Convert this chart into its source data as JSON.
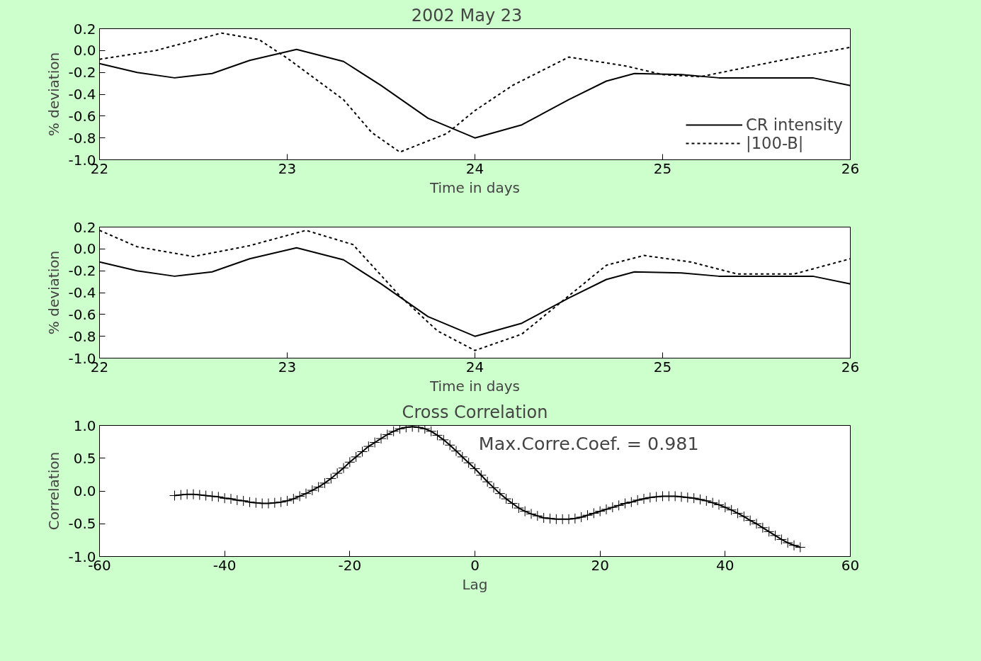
{
  "chart_data": [
    {
      "type": "line",
      "title": "2002 May    23",
      "xlabel": "Time in days",
      "ylabel": "% deviation",
      "xlim": [
        22,
        26
      ],
      "xticks": [
        22,
        23,
        24,
        25,
        26
      ],
      "ylim": [
        -1.0,
        0.2
      ],
      "yticks": [
        {
          "value": 0.2,
          "label": "0.2"
        },
        {
          "value": 0.0,
          "label": "0.0"
        },
        {
          "value": -0.2,
          "label": "-0.2"
        },
        {
          "value": -0.4,
          "label": "-0.4"
        },
        {
          "value": -0.6,
          "label": "-0.6"
        },
        {
          "value": -0.8,
          "label": "-0.8"
        },
        {
          "value": -1.0,
          "label": "-1.0"
        }
      ],
      "grid": false,
      "legend": "bottom right",
      "series": [
        {
          "name": "CR intensity",
          "color": "#000000",
          "line_style": "solid",
          "x": [
            22,
            22.2,
            22.4,
            22.6,
            22.8,
            23.05,
            23.3,
            23.5,
            23.75,
            24.0,
            24.25,
            24.5,
            24.7,
            24.85,
            25.1,
            25.3,
            25.6,
            25.8,
            26
          ],
          "values": [
            -0.12,
            -0.2,
            -0.25,
            -0.21,
            -0.09,
            0.01,
            -0.1,
            -0.32,
            -0.62,
            -0.8,
            -0.68,
            -0.45,
            -0.28,
            -0.21,
            -0.22,
            -0.25,
            -0.25,
            -0.25,
            -0.32
          ]
        },
        {
          "name": "|100-B|",
          "color": "#000000",
          "line_style": "dotted",
          "x": [
            22,
            22.3,
            22.65,
            22.85,
            23.0,
            23.3,
            23.45,
            23.6,
            23.85,
            24.0,
            24.2,
            24.5,
            24.8,
            25.0,
            25.2,
            25.6,
            26
          ],
          "values": [
            -0.08,
            0.0,
            0.16,
            0.1,
            -0.07,
            -0.45,
            -0.75,
            -0.93,
            -0.76,
            -0.55,
            -0.32,
            -0.06,
            -0.14,
            -0.22,
            -0.24,
            -0.1,
            0.03
          ]
        }
      ]
    },
    {
      "type": "line",
      "xlabel": "Time in days",
      "ylabel": "% deviation",
      "xlim": [
        22,
        26
      ],
      "xticks": [
        22,
        23,
        24,
        25,
        26
      ],
      "ylim": [
        -1.0,
        0.2
      ],
      "yticks": [
        {
          "value": 0.2,
          "label": "0.2"
        },
        {
          "value": 0.0,
          "label": "0.0"
        },
        {
          "value": -0.2,
          "label": "-0.2"
        },
        {
          "value": -0.4,
          "label": "-0.4"
        },
        {
          "value": -0.6,
          "label": "-0.6"
        },
        {
          "value": -0.8,
          "label": "-0.8"
        },
        {
          "value": -1.0,
          "label": "-1.0"
        }
      ],
      "grid": false,
      "series": [
        {
          "color": "#000000",
          "line_style": "solid",
          "x": [
            22,
            22.2,
            22.4,
            22.6,
            22.8,
            23.05,
            23.3,
            23.5,
            23.75,
            24.0,
            24.25,
            24.5,
            24.7,
            24.85,
            25.1,
            25.3,
            25.6,
            25.8,
            26
          ],
          "values": [
            -0.12,
            -0.2,
            -0.25,
            -0.21,
            -0.09,
            0.01,
            -0.1,
            -0.32,
            -0.62,
            -0.8,
            -0.68,
            -0.45,
            -0.28,
            -0.21,
            -0.22,
            -0.25,
            -0.25,
            -0.25,
            -0.32
          ]
        },
        {
          "color": "#000000",
          "line_style": "dotted",
          "x": [
            22,
            22.2,
            22.5,
            22.8,
            23.1,
            23.35,
            23.6,
            23.8,
            24.0,
            24.25,
            24.5,
            24.7,
            24.9,
            25.15,
            25.4,
            25.7,
            26
          ],
          "values": [
            0.17,
            0.02,
            -0.07,
            0.03,
            0.17,
            0.04,
            -0.43,
            -0.75,
            -0.93,
            -0.78,
            -0.43,
            -0.15,
            -0.06,
            -0.12,
            -0.23,
            -0.23,
            -0.09
          ]
        }
      ]
    },
    {
      "type": "line",
      "title": "Cross Correlation",
      "xlabel": "Lag",
      "ylabel": "Correlation",
      "xlim": [
        -60,
        60
      ],
      "xticks": [
        -60,
        -40,
        -20,
        0,
        20,
        40,
        60
      ],
      "ylim": [
        -1.0,
        1.0
      ],
      "yticks": [
        {
          "value": 1.0,
          "label": "1.0"
        },
        {
          "value": 0.5,
          "label": "0.5"
        },
        {
          "value": 0.0,
          "label": "0.0"
        },
        {
          "value": -0.5,
          "label": "-0.5"
        },
        {
          "value": -1.0,
          "label": "-1.0"
        }
      ],
      "grid": false,
      "marker": "cross",
      "annotations": [
        "Max.Corre.Coef. =  0.981"
      ],
      "series": [
        {
          "color": "#000000",
          "line_style": "solid",
          "x": [
            -48,
            -47,
            -46,
            -45,
            -44,
            -43,
            -42,
            -41,
            -40,
            -39,
            -38,
            -37,
            -36,
            -35,
            -34,
            -33,
            -32,
            -31,
            -30,
            -29,
            -28,
            -27,
            -26,
            -25,
            -24,
            -23,
            -22,
            -21,
            -20,
            -19,
            -18,
            -17,
            -16,
            -15,
            -14,
            -13,
            -12,
            -11,
            -10,
            -9,
            -8,
            -7,
            -6,
            -5,
            -4,
            -3,
            -2,
            -1,
            0,
            1,
            2,
            3,
            4,
            5,
            6,
            7,
            8,
            9,
            10,
            11,
            12,
            13,
            14,
            15,
            16,
            17,
            18,
            19,
            20,
            21,
            22,
            23,
            24,
            25,
            26,
            27,
            28,
            29,
            30,
            31,
            32,
            33,
            34,
            35,
            36,
            37,
            38,
            39,
            40,
            41,
            42,
            43,
            44,
            45,
            46,
            47,
            48,
            49,
            50,
            51,
            52
          ],
          "values": [
            -0.07,
            -0.06,
            -0.05,
            -0.05,
            -0.06,
            -0.07,
            -0.08,
            -0.09,
            -0.11,
            -0.12,
            -0.14,
            -0.15,
            -0.17,
            -0.18,
            -0.19,
            -0.19,
            -0.18,
            -0.17,
            -0.15,
            -0.12,
            -0.08,
            -0.04,
            0.01,
            0.06,
            0.12,
            0.19,
            0.27,
            0.35,
            0.44,
            0.52,
            0.6,
            0.68,
            0.74,
            0.8,
            0.86,
            0.91,
            0.95,
            0.97,
            0.98,
            0.97,
            0.95,
            0.91,
            0.85,
            0.78,
            0.7,
            0.61,
            0.52,
            0.43,
            0.34,
            0.24,
            0.14,
            0.05,
            -0.04,
            -0.12,
            -0.19,
            -0.26,
            -0.31,
            -0.35,
            -0.38,
            -0.41,
            -0.42,
            -0.43,
            -0.43,
            -0.43,
            -0.42,
            -0.4,
            -0.37,
            -0.34,
            -0.31,
            -0.28,
            -0.25,
            -0.22,
            -0.19,
            -0.17,
            -0.14,
            -0.12,
            -0.1,
            -0.09,
            -0.08,
            -0.08,
            -0.08,
            -0.09,
            -0.1,
            -0.11,
            -0.13,
            -0.15,
            -0.18,
            -0.21,
            -0.25,
            -0.29,
            -0.34,
            -0.39,
            -0.45,
            -0.5,
            -0.56,
            -0.62,
            -0.68,
            -0.74,
            -0.79,
            -0.83,
            -0.86
          ]
        }
      ]
    }
  ]
}
